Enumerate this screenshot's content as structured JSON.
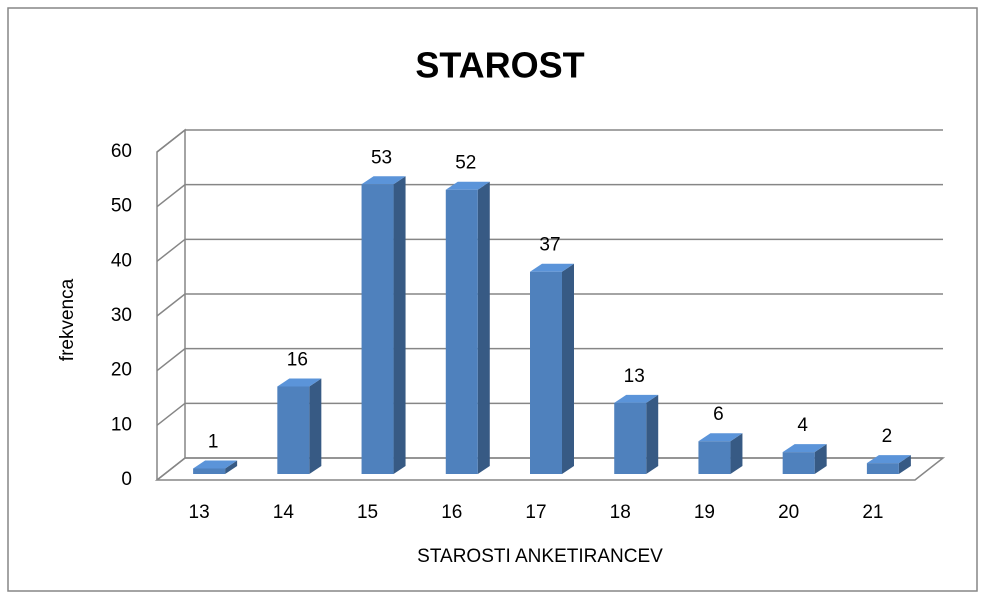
{
  "chart_data": {
    "type": "bar3d",
    "title": "STAROST",
    "x_label": "STAROSTI ANKETIRANCEV",
    "y_label": "frekvenca",
    "categories": [
      "13",
      "14",
      "15",
      "16",
      "17",
      "18",
      "19",
      "20",
      "21"
    ],
    "values": [
      1,
      16,
      53,
      52,
      37,
      13,
      6,
      4,
      2
    ],
    "color": "#4f81bd",
    "ylim": [
      0,
      60
    ],
    "yticks": [
      0,
      10,
      20,
      30,
      40,
      50,
      60
    ],
    "grid": true
  }
}
